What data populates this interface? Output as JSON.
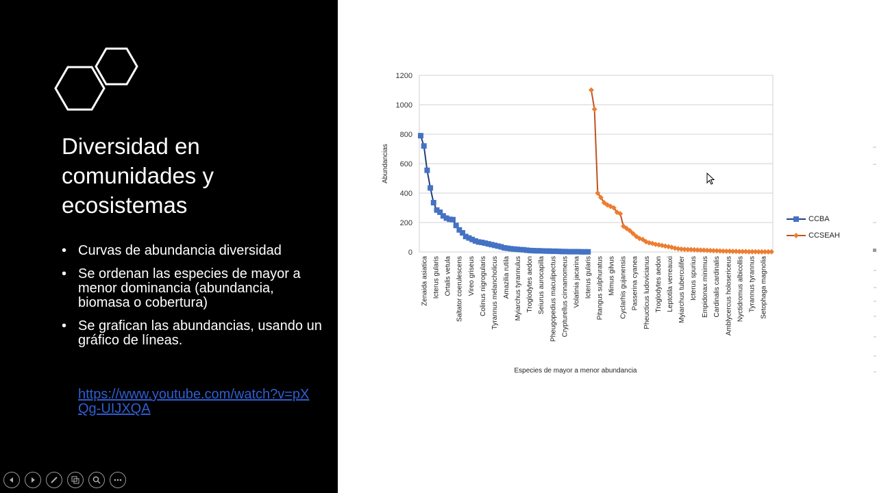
{
  "slide": {
    "title": "Diversidad en comunidades y ecosistemas",
    "bullets": [
      "Curvas de abundancia diversidad",
      "Se ordenan las especies de mayor a menor dominancia (abundancia, biomasa o cobertura)",
      "Se grafican las abundancias, usando un gráfico de líneas."
    ],
    "link": "https://www.youtube.com/watch?v=pXQg-UIJXQA",
    "controls": [
      "previous-icon",
      "next-icon",
      "pen-icon",
      "slides-icon",
      "zoom-icon",
      "more-icon"
    ],
    "bullet_char": "•"
  },
  "colors": {
    "ccba": "#4472c4",
    "ccba_dark": "#1f3f7a",
    "ccseah": "#ed7d31",
    "ccseah_dark": "#c0501f"
  },
  "chart_data": {
    "type": "line",
    "title": "",
    "xlabel": "Especies de mayor a menor abundancia",
    "ylabel": "Abundancias",
    "ylim": [
      0,
      1200
    ],
    "yticks": [
      0,
      200,
      400,
      600,
      800,
      1000,
      1200
    ],
    "grid": true,
    "legend_position": "right",
    "x_tick_labels": [
      "Zenaida asiatica",
      "Icterus gularis",
      "Ortalis vetula",
      "Saltator coerulescens",
      "Vireo griseus",
      "Colinus nigrogularis",
      "Tyrannus melancholicus",
      "Amazilia rutila",
      "Myiarchus tyrannulus",
      "Troglodytes aedon",
      "Seiurus aurocapilla",
      "Pheugopedius maculipectus",
      "Crypturellus cinnamomeus",
      "Volatinia jacarina",
      "Icterus gularis",
      "Pitangus sulphuratus",
      "Mimus gilvus",
      "Cyclarhis gujanensis",
      "Passerina cyanea",
      "Pheucticus ludovicianus",
      "Troglodytes aedon",
      "Leptotila verreauxi",
      "Myiarchus tuberculifer",
      "Icterus spurius",
      "Empidonax minimus",
      "Cardinalis cardinalis",
      "Amblycercus holosericeus",
      "Nyctidromus albicollis",
      "Tyrannus tyrannus",
      "Setophaga magnolia"
    ],
    "series": [
      {
        "name": "CCBA",
        "marker": "square",
        "values": [
          790,
          720,
          555,
          435,
          335,
          285,
          270,
          245,
          230,
          222,
          220,
          180,
          150,
          130,
          105,
          95,
          85,
          75,
          68,
          65,
          60,
          55,
          50,
          45,
          40,
          35,
          28,
          25,
          22,
          20,
          18,
          16,
          15,
          12,
          10,
          9,
          8,
          8,
          7,
          6,
          6,
          5,
          5,
          4,
          3,
          3,
          2,
          2,
          2,
          2,
          1,
          1,
          1
        ]
      },
      {
        "name": "CCSEAH",
        "marker": "diamond",
        "values": [
          1100,
          970,
          400,
          370,
          335,
          320,
          310,
          300,
          270,
          260,
          175,
          160,
          145,
          125,
          105,
          92,
          85,
          70,
          62,
          58,
          52,
          48,
          44,
          40,
          36,
          32,
          26,
          22,
          20,
          18,
          17,
          16,
          15,
          14,
          13,
          12,
          11,
          10,
          9,
          8,
          7,
          6,
          5,
          5,
          4,
          4,
          3,
          3,
          3,
          2,
          2,
          2,
          1,
          1,
          1,
          1,
          1
        ]
      }
    ]
  }
}
